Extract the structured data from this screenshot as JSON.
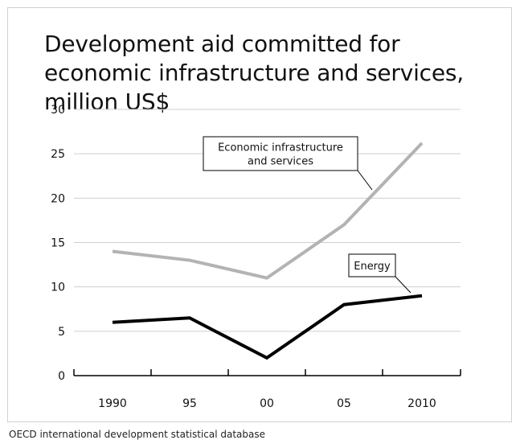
{
  "figure": {
    "source_note": "OECD international development statistical database"
  },
  "chart_data": {
    "type": "line",
    "title": "Development aid committed for economic infrastructure and services, million US$",
    "x": [
      "1990",
      "95",
      "00",
      "05",
      "2010"
    ],
    "ylim": [
      0,
      30
    ],
    "yticks": [
      0,
      5,
      10,
      15,
      20,
      25,
      30
    ],
    "grid": true,
    "series": [
      {
        "name": "Economic infrastructure and services",
        "label_lines": [
          "Economic infrastructure",
          "and services"
        ],
        "color": "#b3b3b3",
        "values": [
          14,
          13,
          11,
          17,
          26.2
        ]
      },
      {
        "name": "Energy",
        "label_lines": [
          "Energy"
        ],
        "color": "#000000",
        "values": [
          6,
          6.5,
          2,
          8,
          9
        ]
      }
    ]
  }
}
